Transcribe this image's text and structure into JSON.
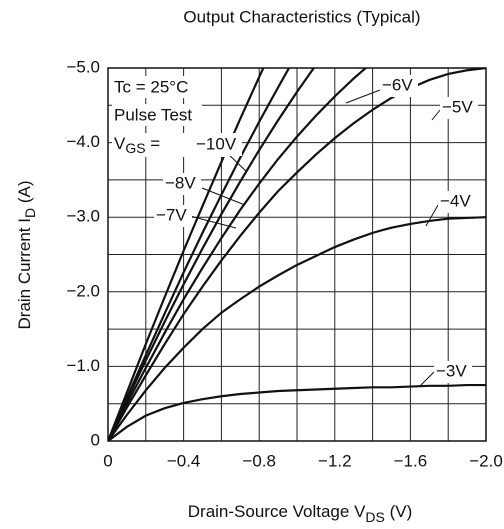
{
  "chart_data": {
    "type": "line",
    "title": "Output Characteristics (Typical)",
    "x_label": {
      "text": "Drain-Source Voltage  V",
      "subscript": "DS",
      "suffix": "  (V)"
    },
    "y_label": {
      "text": "Drain Current  I",
      "subscript": "D",
      "suffix": "  (A)"
    },
    "annotations": [
      "Tc = 25°C",
      "Pulse Test"
    ],
    "vgs_label": {
      "text": "V",
      "subscript": "GS",
      "suffix": " ="
    },
    "x": [
      0,
      -0.1,
      -0.2,
      -0.3,
      -0.4,
      -0.5,
      -0.6,
      -0.7,
      -0.8,
      -0.9,
      -1.0,
      -1.1,
      -1.2,
      -1.3,
      -1.4,
      -1.5,
      -1.6,
      -1.7,
      -1.8,
      -1.9,
      -2.0
    ],
    "series": [
      {
        "name": "−3V",
        "color": "#111111",
        "values": [
          0,
          -0.19,
          -0.34,
          -0.44,
          -0.51,
          -0.56,
          -0.6,
          -0.63,
          -0.65,
          -0.67,
          -0.68,
          -0.69,
          -0.7,
          -0.71,
          -0.72,
          -0.72,
          -0.73,
          -0.74,
          -0.74,
          -0.75,
          -0.75
        ]
      },
      {
        "name": "−4V",
        "color": "#111111",
        "values": [
          0,
          -0.35,
          -0.68,
          -0.98,
          -1.25,
          -1.5,
          -1.72,
          -1.9,
          -2.07,
          -2.22,
          -2.36,
          -2.48,
          -2.6,
          -2.7,
          -2.79,
          -2.86,
          -2.91,
          -2.95,
          -2.98,
          -2.99,
          -3.0
        ]
      },
      {
        "name": "−5V",
        "color": "#111111",
        "values": [
          0,
          -0.45,
          -0.88,
          -1.3,
          -1.7,
          -2.07,
          -2.42,
          -2.75,
          -3.06,
          -3.35,
          -3.6,
          -3.84,
          -4.06,
          -4.26,
          -4.44,
          -4.6,
          -4.73,
          -4.84,
          -4.92,
          -4.97,
          -5.0
        ]
      },
      {
        "name": "−6V",
        "color": "#111111",
        "values": [
          0,
          -0.5,
          -0.98,
          -1.45,
          -1.9,
          -2.32,
          -2.72,
          -3.1,
          -3.45,
          -3.78,
          -4.08,
          -4.36,
          -4.62,
          -4.86,
          -5.08,
          null,
          null,
          null,
          null,
          null,
          null
        ]
      },
      {
        "name": "−7V",
        "color": "#111111",
        "values": [
          0,
          -0.55,
          -1.08,
          -1.6,
          -2.1,
          -2.58,
          -3.04,
          -3.48,
          -3.9,
          -4.3,
          -4.68,
          -5.04,
          null,
          null,
          null,
          null,
          null,
          null,
          null,
          null,
          null
        ]
      },
      {
        "name": "−8V",
        "color": "#111111",
        "values": [
          0,
          -0.58,
          -1.15,
          -1.71,
          -2.26,
          -2.79,
          -3.3,
          -3.8,
          -4.28,
          -4.74,
          -5.19,
          null,
          null,
          null,
          null,
          null,
          null,
          null,
          null,
          null,
          null
        ]
      },
      {
        "name": "−10V",
        "color": "#111111",
        "values": [
          0,
          -0.65,
          -1.3,
          -1.93,
          -2.55,
          -3.15,
          -3.74,
          -4.32,
          -4.88,
          -5.43,
          null,
          null,
          null,
          null,
          null,
          null,
          null,
          null,
          null,
          null,
          null
        ]
      }
    ],
    "xlim": [
      0,
      -2.0
    ],
    "ylim": [
      0,
      -5.0
    ],
    "xticks": [
      0,
      {
        "value": -0.4,
        "label": "−0.4"
      },
      {
        "value": -0.8,
        "label": "−0.8"
      },
      {
        "value": -1.2,
        "label": "−1.2"
      },
      {
        "value": -1.6,
        "label": "−1.6"
      },
      {
        "value": -2.0,
        "label": "−2.0"
      }
    ],
    "yticks": [
      0,
      {
        "value": -1.0,
        "label": "−1.0"
      },
      {
        "value": -2.0,
        "label": "−2.0"
      },
      {
        "value": -3.0,
        "label": "−3.0"
      },
      {
        "value": -4.0,
        "label": "−4.0"
      },
      {
        "value": -5.0,
        "label": "−5.0"
      }
    ],
    "grid": true,
    "minor_grid": true
  }
}
